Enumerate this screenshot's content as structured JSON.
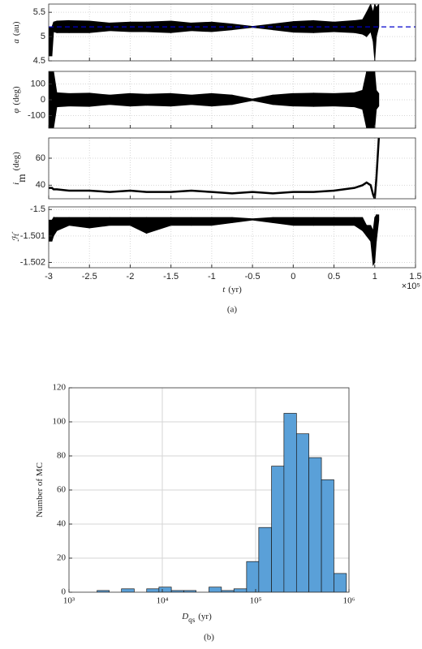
{
  "chart_data": [
    {
      "type": "band",
      "x": [
        -3,
        -2.96,
        -2.94,
        -2.9,
        -2.75,
        -2.5,
        -2.25,
        -2,
        -1.8,
        -1.5,
        -1.25,
        -1,
        -0.75,
        -0.5,
        -0.25,
        0,
        0.25,
        0.5,
        0.75,
        0.85,
        0.9,
        0.95,
        0.98,
        1.0,
        1.02,
        1.05
      ],
      "upper": [
        5.2,
        5.2,
        5.3,
        5.32,
        5.33,
        5.32,
        5.28,
        5.3,
        5.3,
        5.32,
        5.28,
        5.3,
        5.26,
        5.21,
        5.26,
        5.31,
        5.33,
        5.3,
        5.33,
        5.35,
        5.5,
        5.67,
        5.5,
        5.67,
        5.6,
        5.67
      ],
      "lower": [
        4.6,
        4.6,
        5.1,
        5.08,
        5.08,
        5.08,
        5.12,
        5.1,
        5.1,
        5.08,
        5.12,
        5.1,
        5.14,
        5.19,
        5.14,
        5.09,
        5.08,
        5.1,
        5.08,
        5.05,
        5.0,
        5.1,
        4.9,
        4.5,
        5.0,
        5.2
      ],
      "color": "#000000",
      "ylabel": [
        {
          "text": "a",
          "style": "italic"
        },
        {
          "text": "(au)"
        }
      ],
      "xlim": [
        -3,
        1.5
      ],
      "xticks": [
        -3,
        -2.5,
        -2,
        -1.5,
        -1,
        -0.5,
        0,
        0.5,
        1,
        1.5
      ],
      "ylim": [
        4.5,
        5.67
      ],
      "yticks": [
        4.5,
        5,
        5.5
      ],
      "grid": true,
      "hline": 5.2,
      "hline_color": "#0000cc"
    },
    {
      "type": "band",
      "x": [
        -3,
        -2.96,
        -2.94,
        -2.9,
        -2.75,
        -2.5,
        -2.25,
        -2,
        -1.8,
        -1.5,
        -1.25,
        -1,
        -0.75,
        -0.5,
        -0.25,
        0,
        0.25,
        0.5,
        0.75,
        0.85,
        0.9,
        0.95,
        0.98,
        1.0,
        1.02,
        1.05
      ],
      "upper": [
        180,
        180,
        180,
        45,
        40,
        42,
        30,
        40,
        35,
        40,
        30,
        40,
        30,
        5,
        30,
        40,
        42,
        40,
        45,
        60,
        180,
        180,
        180,
        180,
        60,
        40
      ],
      "lower": [
        -180,
        -180,
        -180,
        -45,
        -40,
        -42,
        -30,
        -40,
        -35,
        -40,
        -30,
        -40,
        -30,
        -5,
        -30,
        -40,
        -42,
        -40,
        -45,
        -60,
        -180,
        -180,
        -180,
        -180,
        -60,
        -40
      ],
      "color": "#000000",
      "ylabel": [
        {
          "text": "φ",
          "style": "italic"
        },
        {
          "text": "(deg)"
        }
      ],
      "xlim": [
        -3,
        1.5
      ],
      "xticks": [
        -3,
        -2.5,
        -2,
        -1.5,
        -1,
        -0.5,
        0,
        0.5,
        1,
        1.5
      ],
      "ylim": [
        -180,
        180
      ],
      "yticks": [
        -100,
        0,
        100
      ],
      "grid": true
    },
    {
      "type": "line",
      "x": [
        -3,
        -2.96,
        -2.94,
        -2.9,
        -2.75,
        -2.5,
        -2.25,
        -2,
        -1.8,
        -1.5,
        -1.25,
        -1,
        -0.75,
        -0.5,
        -0.25,
        0,
        0.25,
        0.5,
        0.75,
        0.85,
        0.9,
        0.95,
        0.98,
        1.0,
        1.02,
        1.05
      ],
      "values": [
        38,
        38,
        37,
        37,
        36,
        36,
        35,
        36,
        35,
        35,
        36,
        35,
        34,
        35,
        34,
        35,
        35,
        36,
        38,
        40,
        42,
        40,
        33,
        30,
        45,
        75
      ],
      "color": "#000000",
      "ylabel": [
        {
          "text": "i",
          "style": "italic"
        },
        {
          "text": "m",
          "style": "sub"
        },
        {
          "text": "(deg)"
        }
      ],
      "xlim": [
        -3,
        1.5
      ],
      "xticks": [
        -3,
        -2.5,
        -2,
        -1.5,
        -1,
        -0.5,
        0,
        0.5,
        1,
        1.5
      ],
      "ylim": [
        30,
        75
      ],
      "yticks": [
        40,
        60
      ],
      "grid": true
    },
    {
      "type": "band",
      "x": [
        -3,
        -2.96,
        -2.94,
        -2.9,
        -2.75,
        -2.5,
        -2.25,
        -2,
        -1.8,
        -1.5,
        -1.25,
        -1,
        -0.75,
        -0.5,
        -0.25,
        0,
        0.25,
        0.5,
        0.75,
        0.85,
        0.9,
        0.95,
        0.98,
        1.0,
        1.02,
        1.05
      ],
      "upper": [
        -1.5004,
        -1.5004,
        -1.5003,
        -1.5003,
        -1.5003,
        -1.5003,
        -1.5003,
        -1.5003,
        -1.5003,
        -1.5003,
        -1.5003,
        -1.5003,
        -1.5003,
        -1.50035,
        -1.5003,
        -1.5003,
        -1.5003,
        -1.5003,
        -1.5003,
        -1.5003,
        -1.5006,
        -1.5006,
        -1.5008,
        -1.5003,
        -1.5002,
        -1.5002
      ],
      "lower": [
        -1.5012,
        -1.5012,
        -1.501,
        -1.5008,
        -1.5006,
        -1.5007,
        -1.5006,
        -1.5006,
        -1.5009,
        -1.5006,
        -1.5006,
        -1.5006,
        -1.5005,
        -1.5004,
        -1.5005,
        -1.5006,
        -1.5006,
        -1.5006,
        -1.5006,
        -1.5008,
        -1.501,
        -1.5012,
        -1.5021,
        -1.502,
        -1.5012,
        -1.5004
      ],
      "color": "#000000",
      "ylabel": [
        {
          "text": "ℋ",
          "style": "italic"
        }
      ],
      "xlim": [
        -3,
        1.5
      ],
      "xticks": [
        -3,
        -2.5,
        -2,
        -1.5,
        -1,
        -0.5,
        0,
        0.5,
        1,
        1.5
      ],
      "ylim": [
        -1.5022,
        -1.4999
      ],
      "yticks": [
        -1.502,
        -1.501,
        -1.5
      ],
      "grid": true,
      "xticklabels": true,
      "xlabel": [
        {
          "text": "t",
          "style": "italic"
        },
        {
          "text": "(yr)"
        }
      ],
      "x_exponent": "×10⁵",
      "caption": "(a)"
    },
    {
      "type": "histogram",
      "bins": [
        2000,
        2700,
        3650,
        5000,
        6800,
        9200,
        12500,
        17000,
        23000,
        31600,
        43000,
        58500,
        80000,
        108000,
        148000,
        201000,
        274000,
        372000,
        507000,
        690000,
        939000
      ],
      "values": [
        1,
        0,
        2,
        0,
        2,
        3,
        1,
        1,
        0,
        3,
        1,
        2,
        18,
        38,
        74,
        105,
        93,
        79,
        66,
        11
      ],
      "color": "#5aa0d8",
      "edgecolor": "#1a1a1a",
      "xlog": true,
      "xlim": [
        1000,
        1000000
      ],
      "xticks": [
        {
          "value": 1000,
          "label": "10³"
        },
        {
          "value": 10000,
          "label": "10⁴"
        },
        {
          "value": 100000,
          "label": "10⁵"
        },
        {
          "value": 1000000,
          "label": "10⁶"
        }
      ],
      "ylim": [
        0,
        120
      ],
      "yticks": [
        0,
        20,
        40,
        60,
        80,
        100,
        120
      ],
      "grid": true,
      "xticklabels": true,
      "ylabel": [
        {
          "text": "Number of MC"
        }
      ],
      "xlabel": [
        {
          "text": "D",
          "style": "italic"
        },
        {
          "text": "qs",
          "style": "sub"
        },
        {
          "text": "(yr)"
        }
      ],
      "caption": "(b)"
    }
  ]
}
